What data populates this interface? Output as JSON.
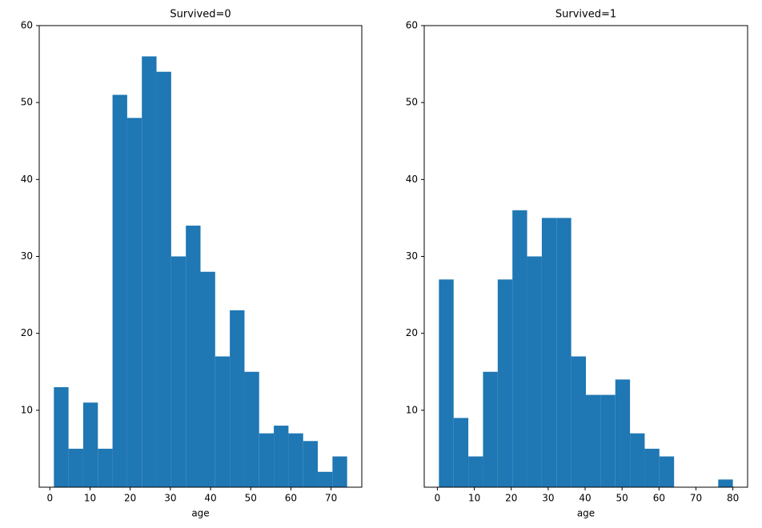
{
  "chart_data": [
    {
      "type": "histogram",
      "title": "Survived=0",
      "xlabel": "age",
      "color": "#1f77b4",
      "bins": [
        1,
        4.65,
        8.3,
        11.95,
        15.6,
        19.25,
        22.9,
        26.55,
        30.2,
        33.85,
        37.5,
        41.15,
        44.8,
        48.45,
        52.1,
        55.75,
        59.4,
        63.05,
        66.7,
        70.35,
        74
      ],
      "counts": [
        13,
        5,
        11,
        5,
        51,
        48,
        56,
        54,
        30,
        34,
        28,
        17,
        23,
        15,
        7,
        8,
        7,
        6,
        2,
        4
      ],
      "xlim": [
        -2.65,
        77.65
      ],
      "xticks": [
        0,
        10,
        20,
        30,
        40,
        50,
        60,
        70
      ],
      "ylim": [
        0,
        60
      ],
      "yticks": [
        10,
        20,
        30,
        40,
        50,
        60
      ]
    },
    {
      "type": "histogram",
      "title": "Survived=1",
      "xlabel": "age",
      "color": "#1f77b4",
      "bins": [
        0.42,
        4.399,
        8.378,
        12.357,
        16.336,
        20.315,
        24.294,
        28.273,
        32.252,
        36.231,
        40.21,
        44.189,
        48.168,
        52.147,
        56.126,
        60.105,
        64.084,
        68.063,
        72.042,
        76.021,
        80
      ],
      "counts": [
        27,
        9,
        4,
        15,
        27,
        36,
        30,
        35,
        35,
        17,
        12,
        12,
        14,
        7,
        5,
        4,
        0,
        0,
        0,
        1
      ],
      "xlim": [
        -3.56,
        83.98
      ],
      "xticks": [
        0,
        10,
        20,
        30,
        40,
        50,
        60,
        70,
        80
      ],
      "ylim": [
        0,
        60
      ],
      "yticks": [
        10,
        20,
        30,
        40,
        50,
        60
      ]
    }
  ]
}
